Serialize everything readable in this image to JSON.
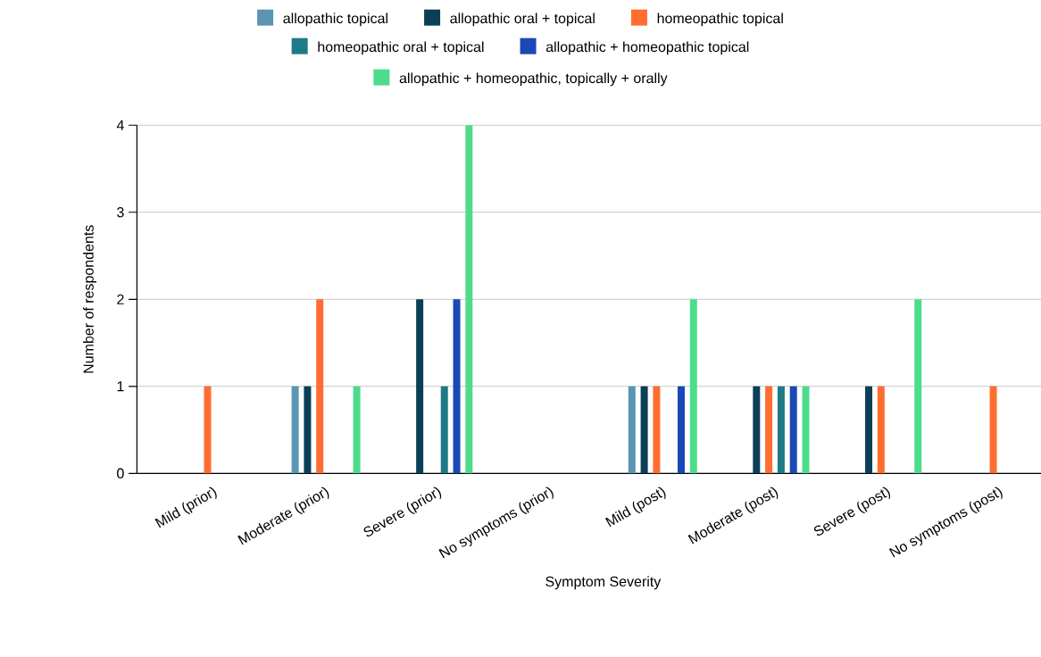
{
  "chart_data": {
    "type": "bar",
    "xlabel": "Symptom Severity",
    "ylabel": "Number of respondents",
    "categories": [
      "Mild (prior)",
      "Moderate (prior)",
      "Severe (prior)",
      "No symptoms (prior)",
      "Mild (post)",
      "Moderate (post)",
      "Severe (post)",
      "No symptoms (post)"
    ],
    "series": [
      {
        "name": "allopathic topical",
        "color": "#5b95b4",
        "values": [
          0,
          1,
          0,
          0,
          1,
          0,
          0,
          0
        ]
      },
      {
        "name": "allopathic oral + topical",
        "color": "#0b3f57",
        "values": [
          0,
          1,
          2,
          0,
          1,
          1,
          1,
          0
        ]
      },
      {
        "name": "homeopathic topical",
        "color": "#ff6d31",
        "values": [
          1,
          2,
          0,
          0,
          1,
          1,
          1,
          1
        ]
      },
      {
        "name": "homeopathic oral + topical",
        "color": "#1f7a87",
        "values": [
          0,
          0,
          1,
          0,
          0,
          1,
          0,
          0
        ]
      },
      {
        "name": "allopathic + homeopathic topical",
        "color": "#1a48b5",
        "values": [
          0,
          0,
          2,
          0,
          1,
          1,
          0,
          0
        ]
      },
      {
        "name": "allopathic + homeopathic, topically + orally",
        "color": "#4ddc8c",
        "values": [
          0,
          1,
          4,
          0,
          2,
          1,
          2,
          0
        ]
      }
    ],
    "ylim": [
      0,
      4
    ],
    "yticks": [
      0,
      1,
      2,
      3,
      4
    ],
    "grid": "y",
    "legend": "top"
  }
}
